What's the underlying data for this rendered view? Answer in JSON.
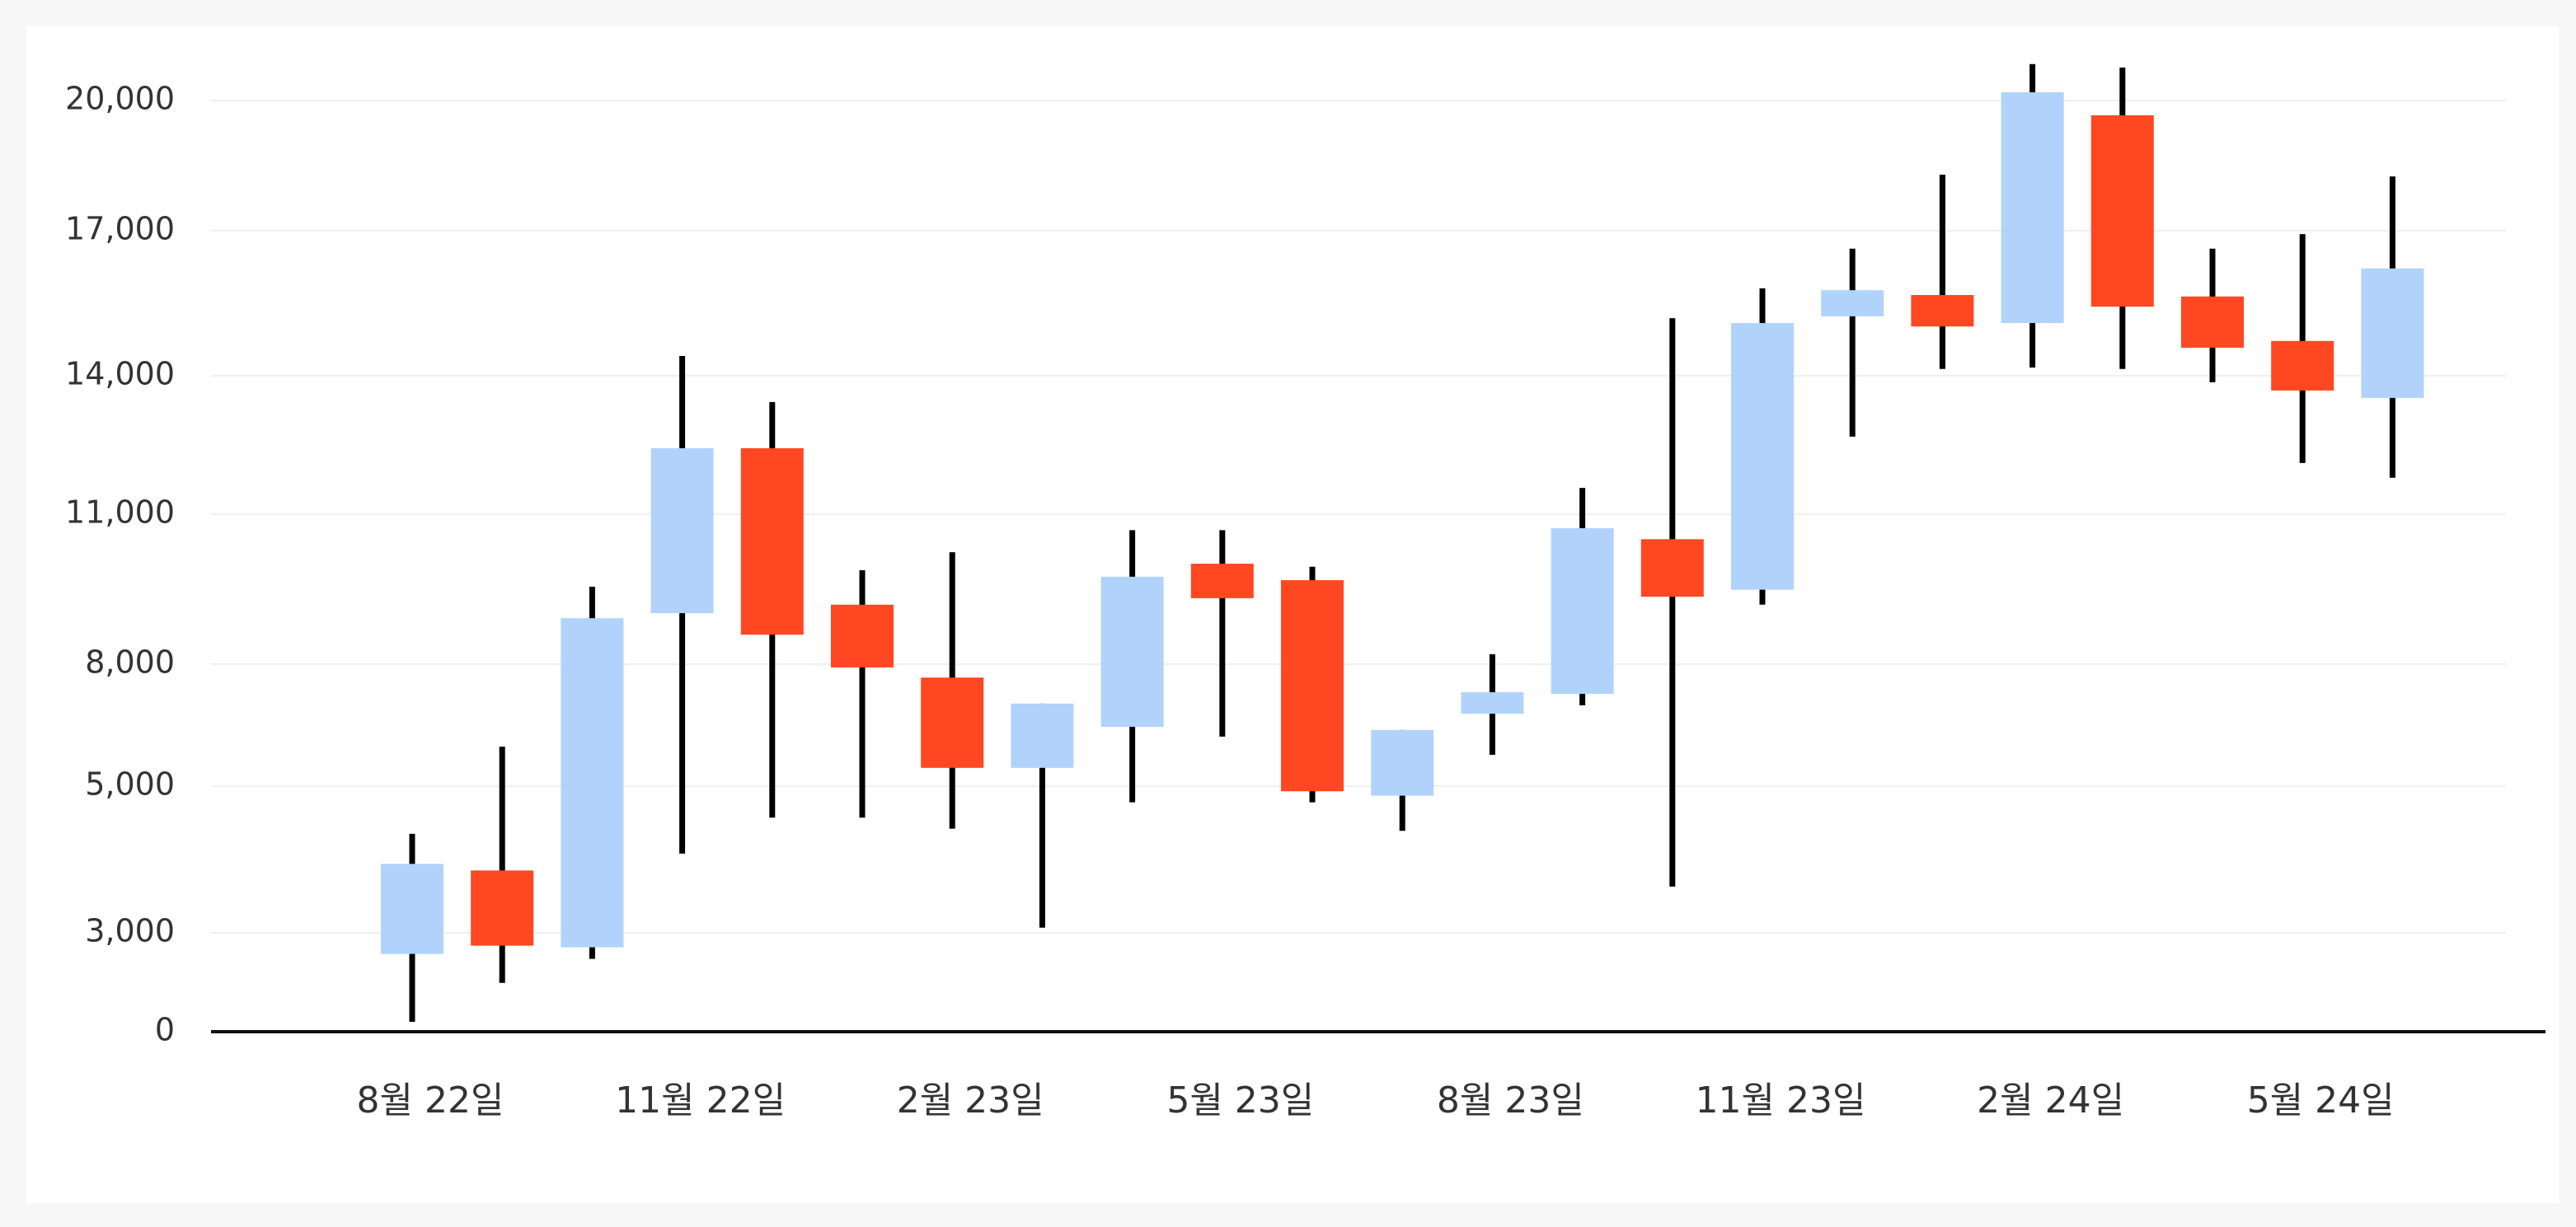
{
  "chart_data": {
    "type": "candlestick",
    "categories": [
      "8월 22일",
      null,
      null,
      "11월 22일",
      null,
      null,
      "2월 23일",
      null,
      null,
      "5월 23일",
      null,
      null,
      "8월 23일",
      null,
      null,
      "11월 23일",
      null,
      null,
      "2월 24일",
      null,
      null,
      "5월 24일",
      null
    ],
    "open": [
      2360,
      3850,
      2560,
      9020,
      12430,
      9190,
      7670,
      5450,
      6460,
      10010,
      9680,
      4870,
      6780,
      7270,
      10500,
      9490,
      15230,
      15670,
      15090,
      19660,
      15640,
      14720,
      13520
    ],
    "high": [
      4350,
      5970,
      9550,
      14410,
      13430,
      9880,
      10240,
      7030,
      10680,
      10680,
      9950,
      6380,
      8200,
      11570,
      15190,
      15810,
      16630,
      18290,
      20840,
      20760,
      16630,
      16930,
      18250
    ],
    "low": [
      300,
      1480,
      2210,
      4080,
      4570,
      4570,
      4420,
      3070,
      4780,
      6220,
      4780,
      4390,
      5770,
      6990,
      3630,
      9190,
      12680,
      14140,
      14170,
      14140,
      13860,
      12110,
      11790
    ],
    "close": [
      3940,
      2610,
      8920,
      12430,
      8590,
      7920,
      5450,
      7030,
      9750,
      9320,
      4930,
      6380,
      7310,
      10720,
      9350,
      15090,
      15770,
      15020,
      20190,
      15430,
      14580,
      13680,
      16220
    ],
    "up_color": "#b1d3fb",
    "down_color": "#ff4722",
    "ylim": [
      0,
      21000
    ],
    "yticks": [
      0,
      {
        "value": 3000,
        "label": "3,000"
      },
      {
        "value": 5000,
        "label": "5,000"
      },
      {
        "value": 8000,
        "label": "8,000"
      },
      {
        "value": 11000,
        "label": "11,000"
      },
      {
        "value": 14000,
        "label": "14,000"
      },
      {
        "value": 17000,
        "label": "17,000"
      },
      {
        "value": 20000,
        "label": "20,000"
      }
    ],
    "grid": true
  }
}
